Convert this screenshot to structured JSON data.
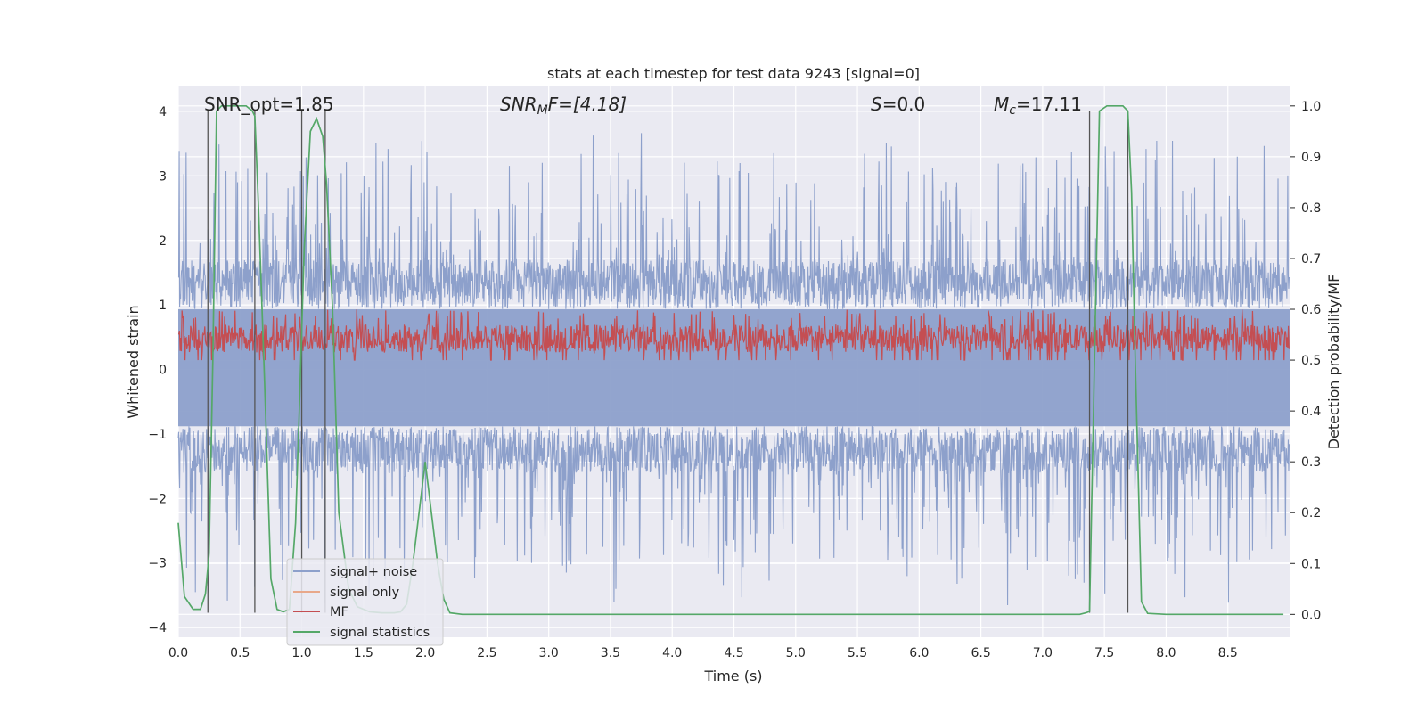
{
  "chart_data": {
    "type": "line",
    "title": "stats at each timestep for test data 9243 [signal=0]",
    "xlabel": "Time (s)",
    "ylabel": "Whitened strain",
    "y2label": "Detection probability/MF",
    "xlim": [
      0,
      9.0
    ],
    "ylim": [
      -4.15,
      4.4
    ],
    "y2lim": [
      -0.045,
      1.04
    ],
    "x_ticks": [
      "0.0",
      "0.5",
      "1.0",
      "1.5",
      "2.0",
      "2.5",
      "3.0",
      "3.5",
      "4.0",
      "4.5",
      "5.0",
      "5.5",
      "6.0",
      "6.5",
      "7.0",
      "7.5",
      "8.0",
      "8.5"
    ],
    "y_ticks": [
      "4",
      "3",
      "2",
      "1",
      "0",
      "−1",
      "−2",
      "−3",
      "−4"
    ],
    "y2_ticks": [
      "1.0",
      "0.9",
      "0.8",
      "0.7",
      "0.6",
      "0.5",
      "0.4",
      "0.3",
      "0.2",
      "0.1",
      "0.0"
    ],
    "grid": true,
    "legend_placement": "lower-left",
    "annotations": {
      "snr_opt": "SNR_opt=1.85",
      "snr_mf_prefix": "SNR",
      "snr_mf_sub": "M",
      "snr_mf_suffix": "F=[4.18]",
      "s_prefix": "S",
      "s_suffix": "=0.0",
      "mc_prefix": "M",
      "mc_sub": "c",
      "mc_suffix": "=17.11"
    },
    "vertical_markers": [
      {
        "x": 0.24,
        "y_top": 4.0,
        "y_bottom": -3.77
      },
      {
        "x": 0.62,
        "y_top": 4.0,
        "y_bottom": -3.77
      },
      {
        "x": 1.0,
        "y_top": 4.0,
        "y_bottom": -3.77
      },
      {
        "x": 1.19,
        "y_top": 4.0,
        "y_bottom": -3.77
      },
      {
        "x": 7.38,
        "y_top": 4.0,
        "y_bottom": -3.77
      },
      {
        "x": 7.69,
        "y_top": 4.0,
        "y_bottom": -3.77
      }
    ],
    "series": [
      {
        "name": "signal+ noise",
        "color": "#8da0cb",
        "style": "noise band",
        "range_typical": [
          -1.6,
          1.7
        ],
        "range_peak": [
          -3.7,
          3.7
        ]
      },
      {
        "name": "signal only",
        "color": "#e8a88a",
        "values": []
      },
      {
        "name": "MF",
        "color": "#c44e52",
        "axis": "right",
        "range": [
          0.5,
          0.6
        ]
      },
      {
        "name": "signal statistics",
        "color": "#55a868",
        "axis": "right",
        "x": [
          0.0,
          0.05,
          0.12,
          0.18,
          0.22,
          0.25,
          0.28,
          0.31,
          0.35,
          0.45,
          0.55,
          0.6,
          0.62,
          0.65,
          0.7,
          0.75,
          0.8,
          0.85,
          0.9,
          0.95,
          0.98,
          1.02,
          1.07,
          1.12,
          1.17,
          1.2,
          1.25,
          1.3,
          1.38,
          1.45,
          1.55,
          1.65,
          1.75,
          1.8,
          1.85,
          1.9,
          1.95,
          2.0,
          2.05,
          2.1,
          2.15,
          2.2,
          2.3,
          2.5,
          7.3,
          7.35,
          7.38,
          7.42,
          7.46,
          7.52,
          7.6,
          7.65,
          7.69,
          7.72,
          7.75,
          7.8,
          7.85,
          8.0,
          8.95
        ],
        "y": [
          0.18,
          0.035,
          0.01,
          0.01,
          0.04,
          0.12,
          0.5,
          0.99,
          1.0,
          1.0,
          1.0,
          0.99,
          0.98,
          0.8,
          0.45,
          0.07,
          0.01,
          0.005,
          0.01,
          0.18,
          0.4,
          0.72,
          0.95,
          0.975,
          0.94,
          0.85,
          0.6,
          0.2,
          0.05,
          0.015,
          0.005,
          0.003,
          0.003,
          0.005,
          0.02,
          0.1,
          0.2,
          0.3,
          0.2,
          0.1,
          0.03,
          0.003,
          0.0,
          0.0,
          0.0,
          0.003,
          0.006,
          0.5,
          0.99,
          1.0,
          1.0,
          1.0,
          0.99,
          0.83,
          0.5,
          0.025,
          0.002,
          0.0,
          0.0
        ]
      }
    ]
  },
  "legend": [
    {
      "label": "signal+ noise",
      "color": "#8da0cb"
    },
    {
      "label": "signal only",
      "color": "#e8a88a"
    },
    {
      "label": "MF",
      "color": "#c44e52"
    },
    {
      "label": "signal statistics",
      "color": "#55a868"
    }
  ],
  "style": {
    "background": "#eaeaf2",
    "grid_color": "#ffffff",
    "marker_color": "#555555"
  }
}
